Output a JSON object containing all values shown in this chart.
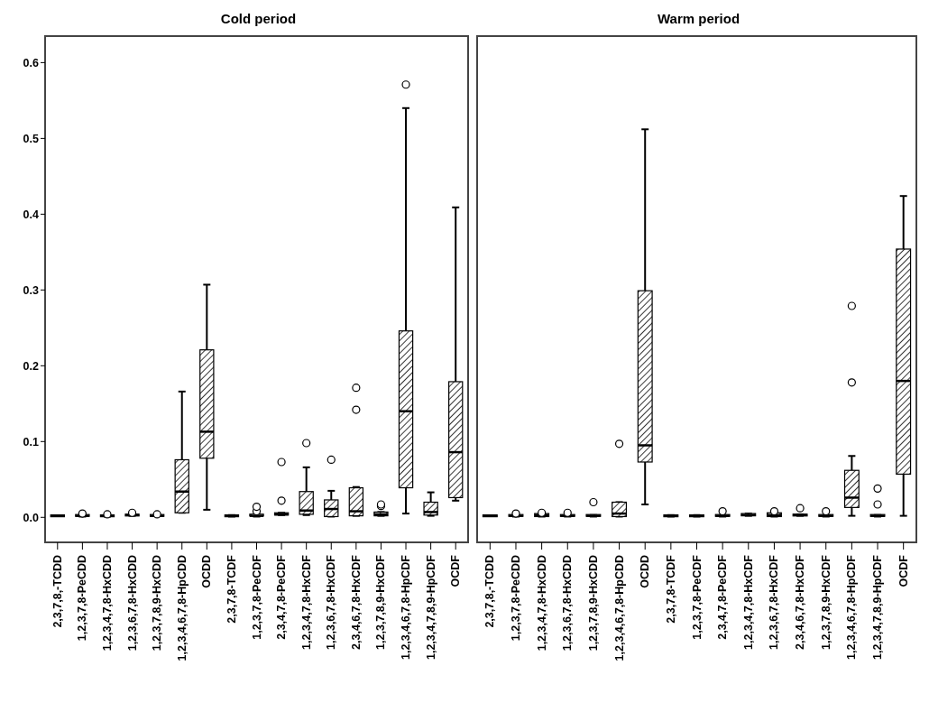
{
  "chart_data": [
    {
      "type": "box",
      "title": "Cold period",
      "categories": [
        "2,3,7,8,-TCDD",
        "1,2,3,7,8-PeCDD",
        "1,2,3,4,7,8-HxCDD",
        "1,2,3,6,7,8-HxCDD",
        "1,2,3,7,8,9-HxCDD",
        "1,2,3,4,6,7,8-HpCDD",
        "OCDD",
        "2,3,7,8-TCDF",
        "1,2,3,7,8-PeCDF",
        "2,3,4,7,8-PeCDF",
        "1,2,3,4,7,8-HxCDF",
        "1,2,3,6,7,8-HxCDF",
        "2,3,4,6,7,8-HxCDF",
        "1,2,3,7,8,9-HxCDF",
        "1,2,3,4,6,7,8-HpCDF",
        "1,2,3,4,7,8,9-HpCDF",
        "OCDF"
      ],
      "boxes": [
        {
          "low": 0.002,
          "q1": 0.002,
          "median": 0.002,
          "q3": 0.002,
          "high": 0.002
        },
        {
          "low": 0.001,
          "q1": 0.002,
          "median": 0.002,
          "q3": 0.003,
          "high": 0.003,
          "outliers": [
            0.005
          ]
        },
        {
          "low": 0.001,
          "q1": 0.001,
          "median": 0.002,
          "q3": 0.003,
          "high": 0.003,
          "outliers": [
            0.004
          ]
        },
        {
          "low": 0.002,
          "q1": 0.002,
          "median": 0.003,
          "q3": 0.004,
          "high": 0.004,
          "outliers": [
            0.006
          ]
        },
        {
          "low": 0.002,
          "q1": 0.002,
          "median": 0.002,
          "q3": 0.003,
          "high": 0.003,
          "outliers": [
            0.004
          ]
        },
        {
          "low": 0.006,
          "q1": 0.006,
          "median": 0.034,
          "q3": 0.076,
          "high": 0.166
        },
        {
          "low": 0.01,
          "q1": 0.078,
          "median": 0.113,
          "q3": 0.221,
          "high": 0.307
        },
        {
          "low": 0.001,
          "q1": 0.002,
          "median": 0.002,
          "q3": 0.002,
          "high": 0.003
        },
        {
          "low": 0.001,
          "q1": 0.002,
          "median": 0.002,
          "q3": 0.004,
          "high": 0.004,
          "outliers": [
            0.008,
            0.014
          ]
        },
        {
          "low": 0.003,
          "q1": 0.003,
          "median": 0.004,
          "q3": 0.006,
          "high": 0.006,
          "outliers": [
            0.022,
            0.073
          ]
        },
        {
          "low": 0.003,
          "q1": 0.004,
          "median": 0.009,
          "q3": 0.034,
          "high": 0.066,
          "outliers": [
            0.098
          ]
        },
        {
          "low": 0.001,
          "q1": 0.001,
          "median": 0.011,
          "q3": 0.023,
          "high": 0.035,
          "outliers": [
            0.076
          ]
        },
        {
          "low": 0.002,
          "q1": 0.002,
          "median": 0.008,
          "q3": 0.039,
          "high": 0.04,
          "outliers": [
            0.142,
            0.171
          ]
        },
        {
          "low": 0.002,
          "q1": 0.002,
          "median": 0.004,
          "q3": 0.007,
          "high": 0.007,
          "outliers": [
            0.015,
            0.017
          ]
        },
        {
          "low": 0.005,
          "q1": 0.039,
          "median": 0.14,
          "q3": 0.246,
          "high": 0.54,
          "outliers": [
            0.571
          ]
        },
        {
          "low": 0.002,
          "q1": 0.003,
          "median": 0.007,
          "q3": 0.02,
          "high": 0.033
        },
        {
          "low": 0.022,
          "q1": 0.026,
          "median": 0.086,
          "q3": 0.179,
          "high": 0.409
        }
      ],
      "ylim": [
        -0.033,
        0.635
      ],
      "yticks": [
        {
          "value": 0,
          "label": "0.0"
        },
        {
          "value": 0.1,
          "label": "0.1"
        },
        {
          "value": 0.2,
          "label": "0.2"
        },
        {
          "value": 0.3,
          "label": "0.3"
        },
        {
          "value": 0.4,
          "label": "0.4"
        },
        {
          "value": 0.5,
          "label": "0.5"
        },
        {
          "value": 0.6,
          "label": "0.6"
        }
      ]
    },
    {
      "type": "box",
      "title": "Warm period",
      "categories": [
        "2,3,7,8,-TCDD",
        "1,2,3,7,8-PeCDD",
        "1,2,3,4,7,8-HxCDD",
        "1,2,3,6,7,8-HxCDD",
        "1,2,3,7,8,9-HxCDD",
        "1,2,3,4,6,7,8-HpCDD",
        "OCDD",
        "2,3,7,8-TCDF",
        "1,2,3,7,8-PeCDF",
        "2,3,4,7,8-PeCDF",
        "1,2,3,4,7,8-HxCDF",
        "1,2,3,6,7,8-HxCDF",
        "2,3,4,6,7,8-HxCDF",
        "1,2,3,7,8,9-HxCDF",
        "1,2,3,4,6,7,8-HpCDF",
        "1,2,3,4,7,8,9-HpCDF",
        "OCDF"
      ],
      "boxes": [
        {
          "low": 0.002,
          "q1": 0.002,
          "median": 0.002,
          "q3": 0.002,
          "high": 0.002
        },
        {
          "low": 0.001,
          "q1": 0.002,
          "median": 0.002,
          "q3": 0.003,
          "high": 0.003,
          "outliers": [
            0.005
          ]
        },
        {
          "low": 0.001,
          "q1": 0.001,
          "median": 0.003,
          "q3": 0.005,
          "high": 0.005,
          "outliers": [
            0.006
          ]
        },
        {
          "low": 0.001,
          "q1": 0.002,
          "median": 0.002,
          "q3": 0.003,
          "high": 0.003,
          "outliers": [
            0.006
          ]
        },
        {
          "low": 0.001,
          "q1": 0.002,
          "median": 0.002,
          "q3": 0.003,
          "high": 0.003,
          "outliers": [
            0.02
          ]
        },
        {
          "low": 0.001,
          "q1": 0.001,
          "median": 0.005,
          "q3": 0.02,
          "high": 0.02,
          "outliers": [
            0.097
          ]
        },
        {
          "low": 0.017,
          "q1": 0.073,
          "median": 0.095,
          "q3": 0.299,
          "high": 0.512
        },
        {
          "low": 0.001,
          "q1": 0.002,
          "median": 0.002,
          "q3": 0.002,
          "high": 0.003
        },
        {
          "low": 0.001,
          "q1": 0.002,
          "median": 0.002,
          "q3": 0.002,
          "high": 0.003
        },
        {
          "low": 0.001,
          "q1": 0.002,
          "median": 0.002,
          "q3": 0.003,
          "high": 0.003,
          "outliers": [
            0.008
          ]
        },
        {
          "low": 0.002,
          "q1": 0.002,
          "median": 0.003,
          "q3": 0.005,
          "high": 0.005
        },
        {
          "low": 0.001,
          "q1": 0.001,
          "median": 0.003,
          "q3": 0.006,
          "high": 0.006,
          "outliers": [
            0.008
          ]
        },
        {
          "low": 0.002,
          "q1": 0.002,
          "median": 0.003,
          "q3": 0.004,
          "high": 0.004,
          "outliers": [
            0.012
          ]
        },
        {
          "low": 0.001,
          "q1": 0.002,
          "median": 0.002,
          "q3": 0.003,
          "high": 0.003,
          "outliers": [
            0.008
          ]
        },
        {
          "low": 0.002,
          "q1": 0.013,
          "median": 0.026,
          "q3": 0.062,
          "high": 0.081,
          "outliers": [
            0.178,
            0.279
          ]
        },
        {
          "low": 0.001,
          "q1": 0.002,
          "median": 0.002,
          "q3": 0.003,
          "high": 0.003,
          "outliers": [
            0.017,
            0.038
          ]
        },
        {
          "low": 0.002,
          "q1": 0.057,
          "median": 0.18,
          "q3": 0.354,
          "high": 0.424
        }
      ],
      "ylim": [
        -0.033,
        0.635
      ],
      "tick_labels": "x"
    }
  ]
}
